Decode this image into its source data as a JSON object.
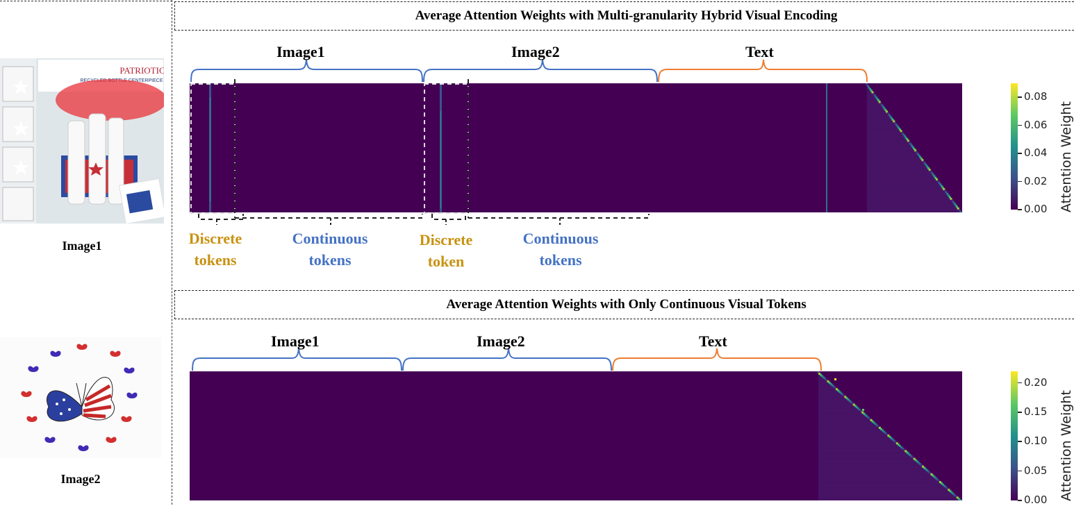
{
  "left_panel": {
    "image1_label": "Image1",
    "image2_label": "Image2",
    "image1_thumb_text": {
      "brand": "PATRIOTIC",
      "subtitle": "RECYCLED BOTTLE CENTERPIECE"
    }
  },
  "panel1": {
    "title": "Average Attention Weights with Multi-granularity Hybrid Visual Encoding",
    "brackets": [
      {
        "label": "Image1",
        "color": "#4472c4"
      },
      {
        "label": "Image2",
        "color": "#4472c4"
      },
      {
        "label": "Text",
        "color": "#ed7d31"
      }
    ],
    "token_labels": [
      {
        "text": "Discrete tokens",
        "line1": "Discrete",
        "line2": "tokens",
        "color": "#c89211"
      },
      {
        "text": "Continuous tokens",
        "line1": "Continuous",
        "line2": "tokens",
        "color": "#4472c4"
      },
      {
        "text": "Discrete token",
        "line1": "Discrete",
        "line2": "token",
        "color": "#c89211"
      },
      {
        "text": "Continuous tokens",
        "line1": "Continuous",
        "line2": "tokens",
        "color": "#4472c4"
      }
    ],
    "colorbar": {
      "title": "Attention Weight",
      "range": [
        0,
        0.09
      ],
      "ticks": [
        "0.00",
        "0.02",
        "0.04",
        "0.06",
        "0.08"
      ]
    }
  },
  "panel2": {
    "title": "Average Attention Weights with Only Continuous Visual Tokens",
    "brackets": [
      {
        "label": "Image1",
        "color": "#4472c4"
      },
      {
        "label": "Image2",
        "color": "#4472c4"
      },
      {
        "label": "Text",
        "color": "#ed7d31"
      }
    ],
    "colorbar": {
      "title": "Attention Weight",
      "range": [
        0,
        0.22
      ],
      "ticks": [
        "0.00",
        "0.05",
        "0.10",
        "0.15",
        "0.20"
      ]
    }
  },
  "colormap": "viridis"
}
